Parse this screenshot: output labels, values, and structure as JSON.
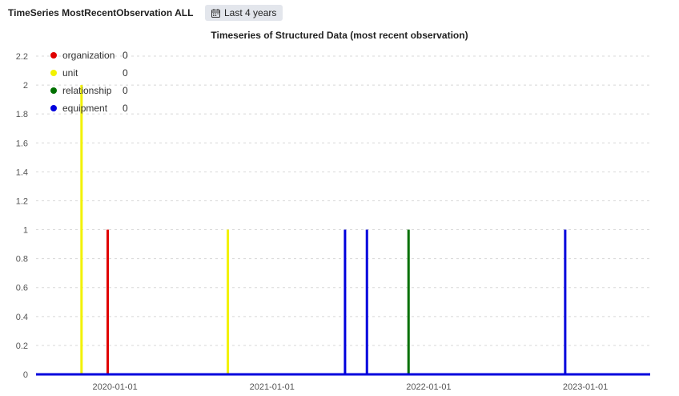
{
  "header": {
    "panel_title": "TimeSeries MostRecentObservation ALL",
    "time_range_label": "Last 4 years",
    "time_range_icon": "calendar-icon"
  },
  "chart_data": {
    "type": "bar",
    "title": "Timeseries of Structured Data (most recent observation)",
    "xlabel": "",
    "ylabel": "",
    "xlim": [
      "2019-07-01",
      "2023-06-01"
    ],
    "ylim": [
      0,
      2.2
    ],
    "yticks": [
      0,
      0.2,
      0.4,
      0.6,
      0.8,
      1,
      1.2,
      1.4,
      1.6,
      1.8,
      2,
      2.2
    ],
    "xticks": [
      "2020-01-01",
      "2021-01-01",
      "2022-01-01",
      "2023-01-01"
    ],
    "grid": true,
    "legend_placement": "top-left",
    "series": [
      {
        "name": "organization",
        "color": "#e00000",
        "legend_value": "0",
        "points": [
          {
            "x": "2019-12-15",
            "y": 1
          }
        ]
      },
      {
        "name": "unit",
        "color": "#f2f200",
        "legend_value": "0",
        "points": [
          {
            "x": "2019-10-15",
            "y": 2
          },
          {
            "x": "2020-09-20",
            "y": 1
          }
        ]
      },
      {
        "name": "relationship",
        "color": "#007000",
        "legend_value": "0",
        "points": [
          {
            "x": "2021-11-15",
            "y": 1
          }
        ]
      },
      {
        "name": "equipment",
        "color": "#0000dd",
        "legend_value": "0",
        "points": [
          {
            "x": "2021-06-20",
            "y": 1
          },
          {
            "x": "2021-08-10",
            "y": 1
          },
          {
            "x": "2022-11-15",
            "y": 1
          }
        ]
      }
    ]
  }
}
